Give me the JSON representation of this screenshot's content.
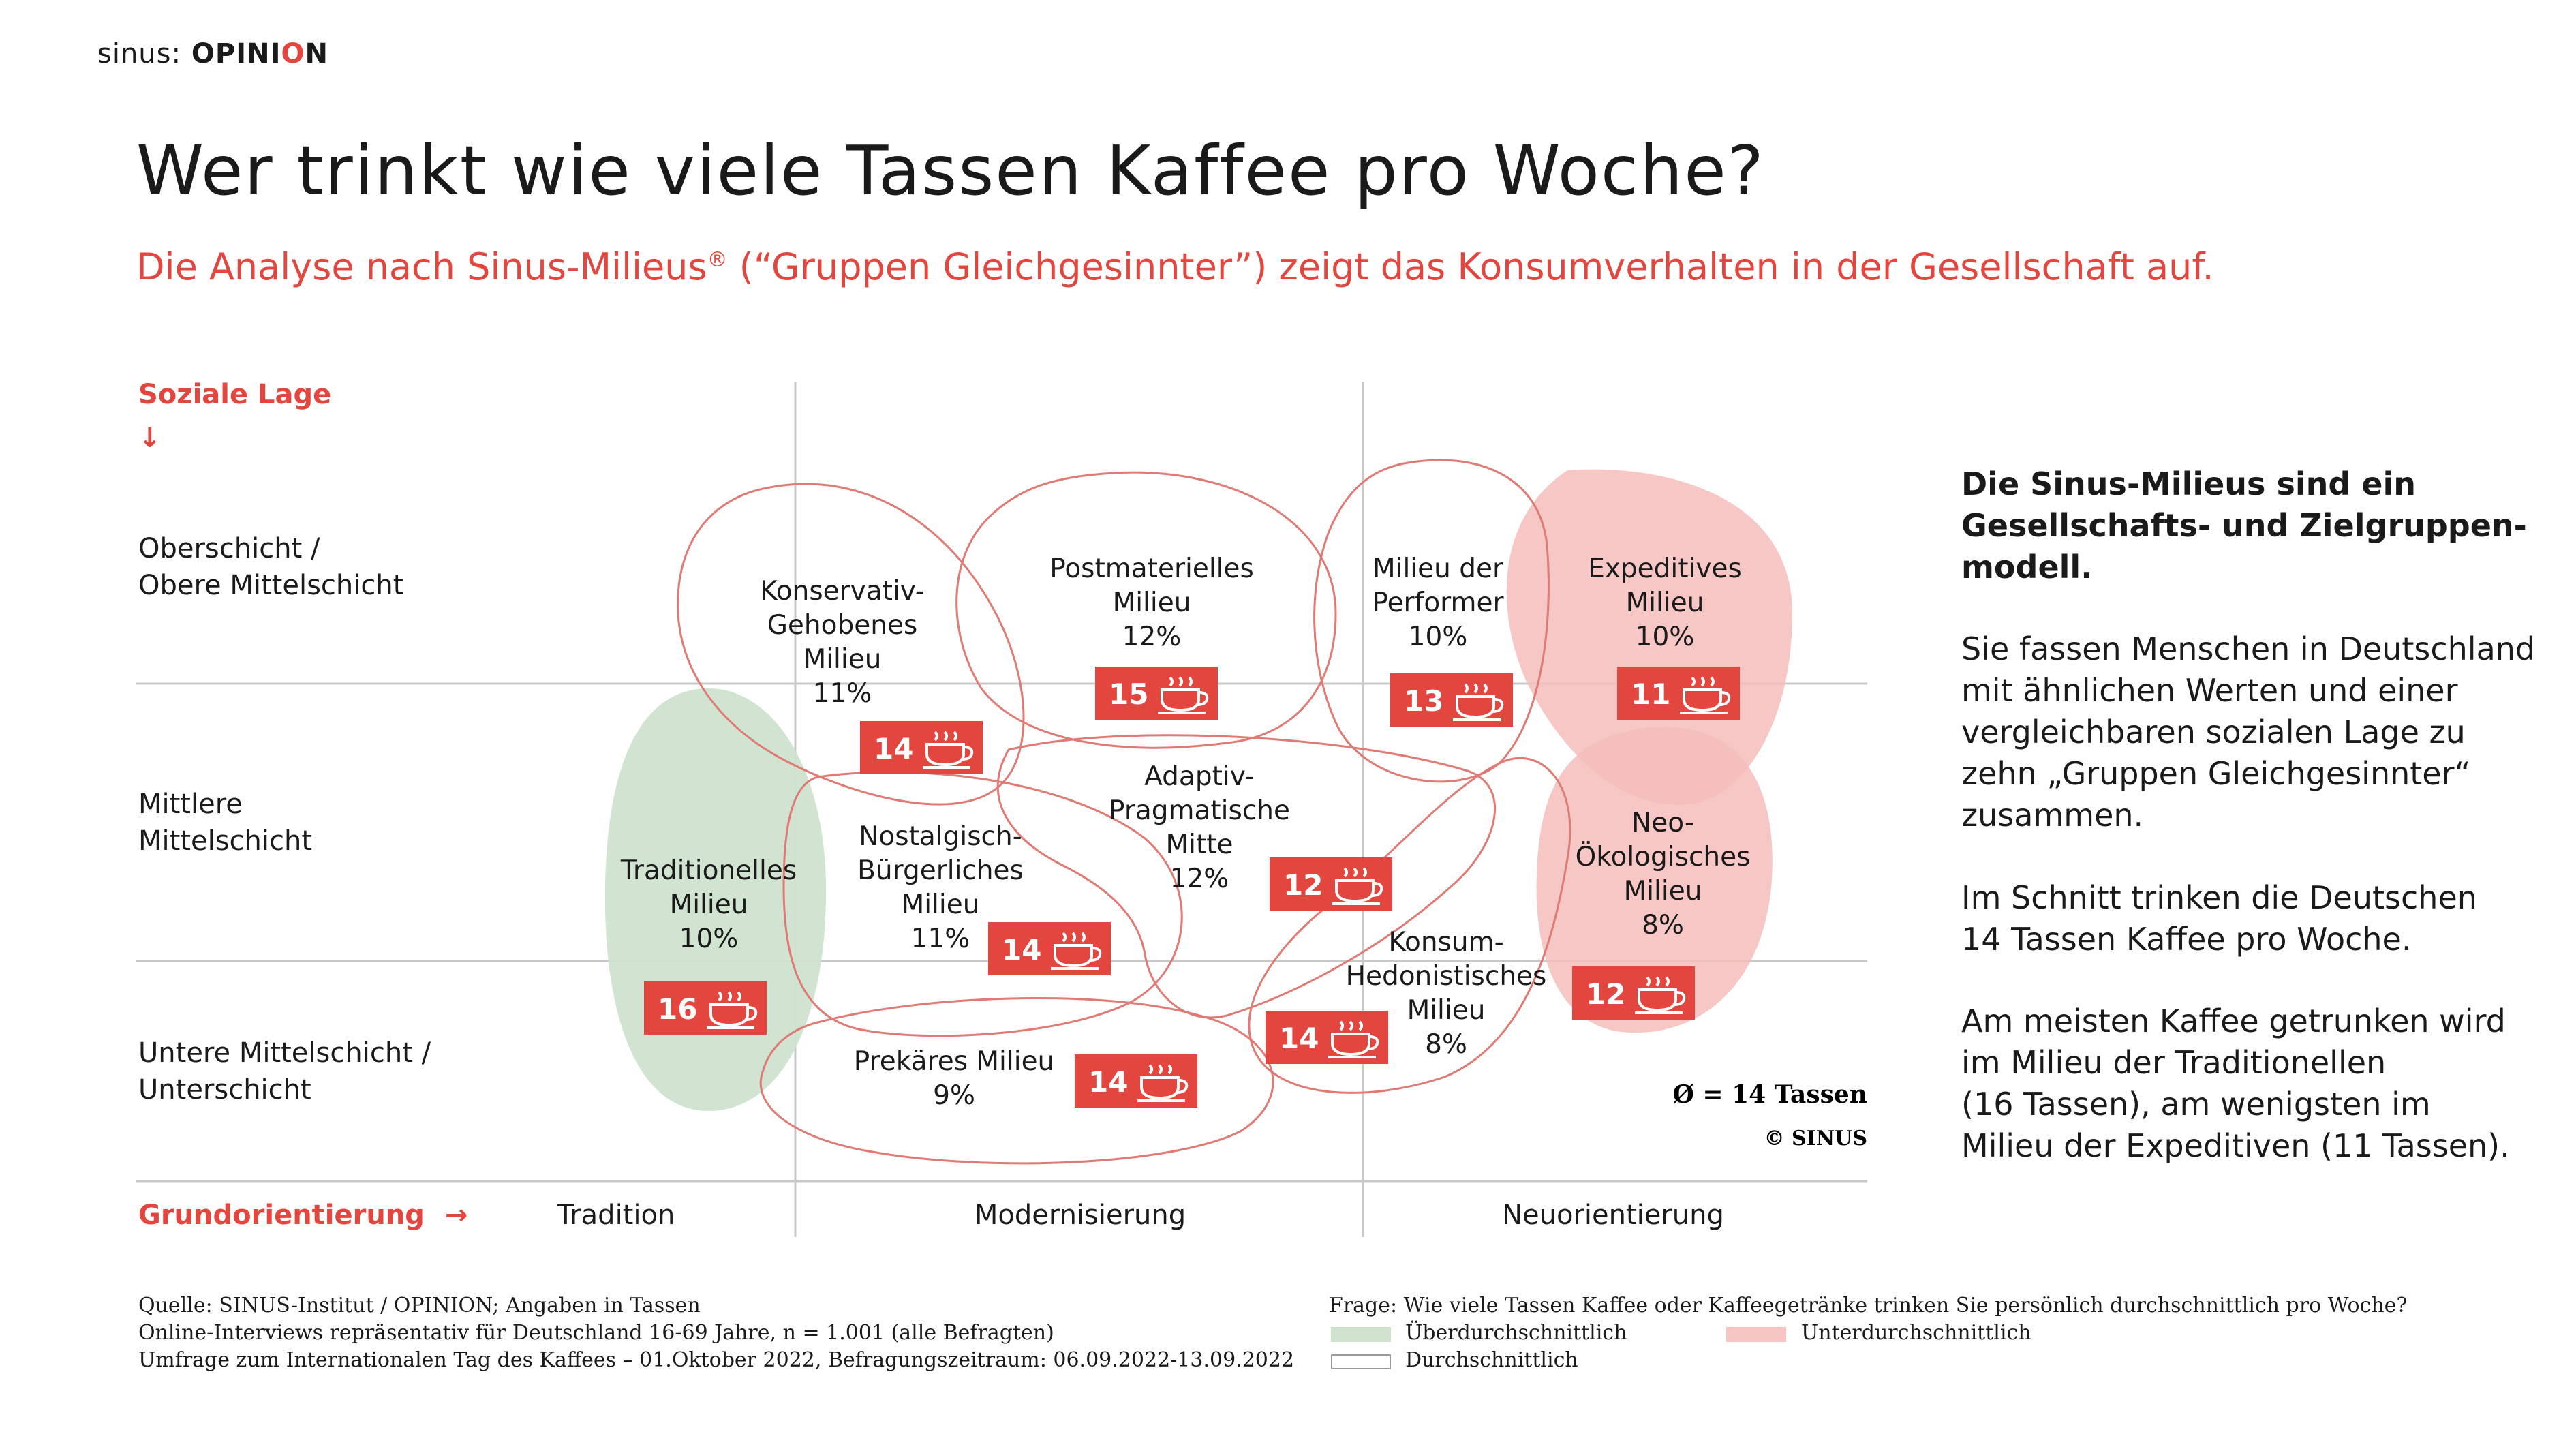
{
  "logo": {
    "brand": "sinus:",
    "product": "OPINI",
    "product_accent": "O",
    "product_end": "N"
  },
  "title": "Wer trinkt wie viele Tassen Kaffee pro Woche?",
  "subtitle_pre": "Die Analyse nach Sinus-Milieus",
  "subtitle_reg": "®",
  "subtitle_post": " (“Gruppen Gleichgesinnter”) zeigt das Konsumverhalten in der Gesellschaft auf.",
  "y_axis": {
    "title": "Soziale Lage",
    "arrow": "↓"
  },
  "x_axis": {
    "title": "Grundorientierung",
    "arrow": "→"
  },
  "rows": [
    {
      "line1": "Oberschicht /",
      "line2": "Obere Mittelschicht"
    },
    {
      "line1": "Mittlere",
      "line2": "Mittelschicht"
    },
    {
      "line1": "Untere Mittelschicht /",
      "line2": "Unterschicht"
    }
  ],
  "columns": [
    "Tradition",
    "Modernisierung",
    "Neuorientierung"
  ],
  "average": "Ø = 14 Tassen",
  "copyright": "© SINUS",
  "chart_data": {
    "type": "table",
    "title": "Wer trinkt wie viele Tassen Kaffee pro Woche?",
    "unit": "Tassen pro Woche",
    "average": 14,
    "series": [
      {
        "name": "Konservativ-Gehobenes Milieu",
        "label_lines": [
          "Konservativ-",
          "Gehobenes",
          "Milieu"
        ],
        "share": "11%",
        "cups": 14,
        "category": "Durchschnittlich"
      },
      {
        "name": "Postmaterielles Milieu",
        "label_lines": [
          "Postmaterielles",
          "Milieu"
        ],
        "share": "12%",
        "cups": 15,
        "category": "Durchschnittlich"
      },
      {
        "name": "Milieu der Performer",
        "label_lines": [
          "Milieu der",
          "Performer"
        ],
        "share": "10%",
        "cups": 13,
        "category": "Durchschnittlich"
      },
      {
        "name": "Expeditives Milieu",
        "label_lines": [
          "Expeditives",
          "Milieu"
        ],
        "share": "10%",
        "cups": 11,
        "category": "Unterdurchschnittlich"
      },
      {
        "name": "Traditionelles Milieu",
        "label_lines": [
          "Traditionelles",
          "Milieu"
        ],
        "share": "10%",
        "cups": 16,
        "category": "Überdurchschnittlich"
      },
      {
        "name": "Nostalgisch-Bürgerliches Milieu",
        "label_lines": [
          "Nostalgisch-",
          "Bürgerliches",
          "Milieu"
        ],
        "share": "11%",
        "cups": 14,
        "category": "Durchschnittlich"
      },
      {
        "name": "Adaptiv-Pragmatische Mitte",
        "label_lines": [
          "Adaptiv-",
          "Pragmatische",
          "Mitte"
        ],
        "share": "12%",
        "cups": 12,
        "category": "Durchschnittlich"
      },
      {
        "name": "Neo-Ökologisches Milieu",
        "label_lines": [
          "Neo-",
          "Ökologisches",
          "Milieu"
        ],
        "share": "8%",
        "cups": 12,
        "category": "Unterdurchschnittlich"
      },
      {
        "name": "Konsum-Hedonistisches Milieu",
        "label_lines": [
          "Konsum-",
          "Hedonistisches",
          "Milieu"
        ],
        "share": "8%",
        "cups": 14,
        "category": "Durchschnittlich"
      },
      {
        "name": "Prekäres Milieu",
        "label_lines": [
          "Prekäres Milieu"
        ],
        "share": "9%",
        "cups": 14,
        "category": "Durchschnittlich"
      }
    ]
  },
  "side": {
    "heading": [
      "Die Sinus-Milieus sind ein",
      "Gesellschafts- und Zielgruppen-",
      "modell."
    ],
    "p1": [
      "Sie fassen Menschen in Deutschland",
      "mit ähnlichen Werten und einer",
      "vergleichbaren sozialen Lage zu",
      "zehn „Gruppen Gleichgesinnter“",
      "zusammen."
    ],
    "p2": [
      "Im Schnitt trinken die Deutschen",
      "14 Tassen Kaffee pro Woche."
    ],
    "p3": [
      "Am meisten Kaffee getrunken wird",
      "im Milieu der Traditionellen",
      "(16 Tassen), am wenigsten im",
      "Milieu der Expeditiven (11 Tassen)."
    ]
  },
  "footer": {
    "source": [
      "Quelle: SINUS-Institut / OPINION; Angaben in Tassen",
      "Online-Interviews repräsentativ für Deutschland 16-69 Jahre, n = 1.001 (alle Befragten)",
      "Umfrage zum Internationalen Tag des Kaffees – 01.Oktober 2022, Befragungszeitraum: 06.09.2022-13.09.2022"
    ],
    "question": "Frage: Wie viele Tassen Kaffee oder Kaffeegetränke trinken Sie persönlich durchschnittlich pro Woche?",
    "legend": [
      {
        "label": "Überdurchschnittlich",
        "color": "#cfe3cf"
      },
      {
        "label": "Durchschnittlich",
        "color": "#ffffff"
      },
      {
        "label": "Unterdurchschnittlich",
        "color": "#f6c6c4"
      }
    ]
  },
  "colors": {
    "accent": "#e2463f",
    "green": "#cfe3cf",
    "pink": "#f4bdbb",
    "outline": "#e07a74"
  }
}
